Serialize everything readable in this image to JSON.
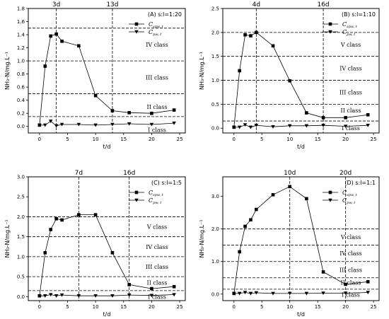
{
  "chart_data": [
    {
      "type": "line",
      "label": "(A) s:l=1:20",
      "x": [
        0,
        1,
        2,
        3,
        4,
        7,
        10,
        13,
        16,
        20,
        24
      ],
      "series": [
        {
          "name": "C",
          "sub": "spw, t",
          "marker": "square",
          "values": [
            0.02,
            0.92,
            1.38,
            1.41,
            1.3,
            1.23,
            0.47,
            0.24,
            0.21,
            0.2,
            0.25
          ]
        },
        {
          "name": "C",
          "sub": "pw, t",
          "marker": "triangle",
          "values": [
            0.02,
            0.02,
            0.08,
            0.01,
            0.03,
            0.03,
            0.02,
            0.03,
            0.04,
            0.03,
            0.05
          ]
        }
      ],
      "xlabel": "t/d",
      "ylabel": "NH₃-N/mg.L⁻¹",
      "xlim": [
        -2,
        26
      ],
      "ylim": [
        -0.1,
        1.8
      ],
      "xticks": [
        0,
        5,
        10,
        15,
        20,
        25
      ],
      "yticks": [
        0.0,
        0.2,
        0.4,
        0.6,
        0.8,
        1.0,
        1.2,
        1.4,
        1.6,
        1.8
      ],
      "ytick_decimals": 1,
      "vlines": [
        {
          "x": 3,
          "label": "3d"
        },
        {
          "x": 13,
          "label": "13d"
        }
      ],
      "hlines": [
        0.15,
        0.5,
        1.0,
        1.5
      ],
      "classes": [
        {
          "label": "IV class",
          "y": 1.25
        },
        {
          "label": "III class",
          "y": 0.75
        },
        {
          "label": "II class",
          "y": 0.3
        },
        {
          "label": "I class",
          "y": -0.05
        }
      ]
    },
    {
      "type": "line",
      "label": "(B) s:l=1:10",
      "x": [
        0,
        1,
        2,
        3,
        4,
        7,
        10,
        13,
        16,
        20,
        24
      ],
      "series": [
        {
          "name": "C",
          "sub": "spw, t",
          "marker": "square",
          "values": [
            0.02,
            1.2,
            1.95,
            1.93,
            2.0,
            1.72,
            0.99,
            0.32,
            0.22,
            0.22,
            0.28
          ]
        },
        {
          "name": "C",
          "sub": "pw, t",
          "marker": "triangle",
          "values": [
            0.02,
            0.02,
            0.07,
            0.02,
            0.06,
            0.03,
            0.05,
            0.05,
            0.06,
            0.04,
            0.06
          ]
        }
      ],
      "xlabel": "t/d",
      "ylabel": "NH₃-N/mg.L⁻¹",
      "xlim": [
        -2,
        26
      ],
      "ylim": [
        -0.1,
        2.5
      ],
      "xticks": [
        0,
        5,
        10,
        15,
        20,
        25
      ],
      "yticks": [
        0.0,
        0.5,
        1.0,
        1.5,
        2.0,
        2.5
      ],
      "ytick_decimals": 1,
      "vlines": [
        {
          "x": 4,
          "label": "4d"
        },
        {
          "x": 16,
          "label": "16d"
        }
      ],
      "hlines": [
        0.15,
        0.5,
        1.0,
        1.5,
        2.0
      ],
      "classes": [
        {
          "label": "V class",
          "y": 1.75
        },
        {
          "label": "IV class",
          "y": 1.25
        },
        {
          "label": "III class",
          "y": 0.75
        },
        {
          "label": "II class",
          "y": 0.37
        },
        {
          "label": "I class",
          "y": 0.0
        }
      ]
    },
    {
      "type": "line",
      "label": "(C) s:l=1:5",
      "x": [
        0,
        1,
        2,
        3,
        4,
        7,
        10,
        13,
        16,
        20,
        24
      ],
      "series": [
        {
          "name": "C",
          "sub": "spw, t",
          "marker": "square",
          "values": [
            0.02,
            1.1,
            1.68,
            1.95,
            1.92,
            2.05,
            2.05,
            1.1,
            0.3,
            0.2,
            0.25
          ]
        },
        {
          "name": "C",
          "sub": "pw, t",
          "marker": "triangle",
          "values": [
            0.02,
            0.02,
            0.05,
            0.02,
            0.04,
            0.02,
            0.02,
            0.02,
            0.04,
            0.03,
            0.05
          ]
        }
      ],
      "xlabel": "t/d",
      "ylabel": "NH₃-N/mg.L⁻¹",
      "xlim": [
        -2,
        26
      ],
      "ylim": [
        -0.1,
        3.0
      ],
      "xticks": [
        0,
        5,
        10,
        15,
        20,
        25
      ],
      "yticks": [
        0.0,
        0.5,
        1.0,
        1.5,
        2.0,
        2.5,
        3.0
      ],
      "ytick_decimals": 1,
      "vlines": [
        {
          "x": 7,
          "label": "7d"
        },
        {
          "x": 16,
          "label": "16d"
        }
      ],
      "hlines": [
        0.15,
        0.5,
        1.0,
        1.5,
        2.0
      ],
      "classes": [
        {
          "label": "V class",
          "y": 1.75
        },
        {
          "label": "IV class",
          "y": 1.25
        },
        {
          "label": "III class",
          "y": 0.75
        },
        {
          "label": "II class",
          "y": 0.35
        },
        {
          "label": "I class",
          "y": 0.0
        }
      ]
    },
    {
      "type": "line",
      "label": "(D) s:l=1:1",
      "x": [
        0,
        1,
        2,
        3,
        4,
        7,
        10,
        13,
        16,
        20,
        24
      ],
      "series": [
        {
          "name": "C",
          "sub": "spw, t",
          "marker": "square",
          "values": [
            0.02,
            1.3,
            2.08,
            2.28,
            2.6,
            3.05,
            3.3,
            2.93,
            0.68,
            0.3,
            0.38
          ]
        },
        {
          "name": "C",
          "sub": "pw, t",
          "marker": "triangle",
          "values": [
            0.02,
            0.02,
            0.05,
            0.02,
            0.04,
            0.02,
            0.02,
            0.02,
            0.03,
            0.03,
            0.05
          ]
        }
      ],
      "xlabel": "t/d",
      "ylabel": "NH₃-N/mg.L⁻¹",
      "xlim": [
        -2,
        26
      ],
      "ylim": [
        -0.2,
        3.6
      ],
      "xticks": [
        0,
        5,
        10,
        15,
        20,
        25
      ],
      "yticks": [
        0,
        1,
        2,
        3
      ],
      "ytick_decimals": 1,
      "vlines": [
        {
          "x": 10,
          "label": "10d"
        },
        {
          "x": 20,
          "label": "20d"
        }
      ],
      "hlines": [
        0.15,
        0.5,
        1.0,
        1.5,
        2.0
      ],
      "classes": [
        {
          "label": "V class",
          "y": 1.75
        },
        {
          "label": "IV class",
          "y": 1.25
        },
        {
          "label": "III class",
          "y": 0.75
        },
        {
          "label": "II class",
          "y": 0.35
        },
        {
          "label": "I class",
          "y": -0.02
        }
      ]
    }
  ]
}
